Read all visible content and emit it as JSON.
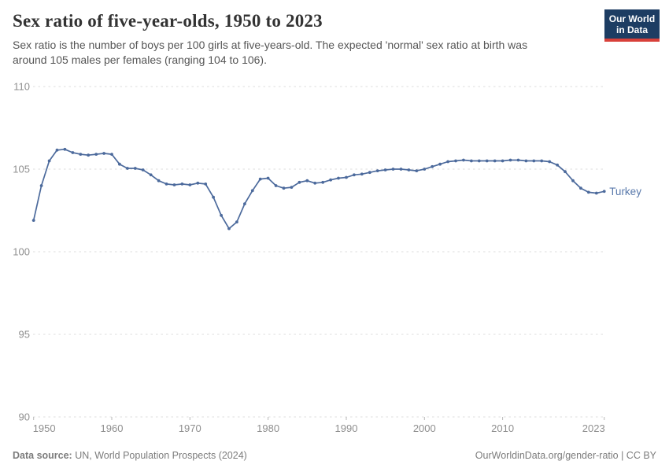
{
  "header": {
    "title": "Sex ratio of five-year-olds, 1950 to 2023",
    "subtitle_line1": "Sex ratio is the number of boys per 100 girls at five-years-old. The expected 'normal' sex ratio at birth was",
    "subtitle_line2": "around 105 males per females (ranging 104 to 106).",
    "logo_line1": "Our World",
    "logo_line2": "in Data"
  },
  "chart_data": {
    "type": "line",
    "title": "Sex ratio of five-year-olds, 1950 to 2023",
    "xlabel": "",
    "ylabel": "",
    "ylim": [
      90,
      110
    ],
    "yticks": [
      90,
      95,
      100,
      105,
      110
    ],
    "xticks": [
      1950,
      1960,
      1970,
      1980,
      1990,
      2000,
      2010,
      2023
    ],
    "x_range": [
      1950,
      2023
    ],
    "grid": "horizontal-dashed",
    "legend": "end-of-line-label",
    "x": [
      1950,
      1951,
      1952,
      1953,
      1954,
      1955,
      1956,
      1957,
      1958,
      1959,
      1960,
      1961,
      1962,
      1963,
      1964,
      1965,
      1966,
      1967,
      1968,
      1969,
      1970,
      1971,
      1972,
      1973,
      1974,
      1975,
      1976,
      1977,
      1978,
      1979,
      1980,
      1981,
      1982,
      1983,
      1984,
      1985,
      1986,
      1987,
      1988,
      1989,
      1990,
      1991,
      1992,
      1993,
      1994,
      1995,
      1996,
      1997,
      1998,
      1999,
      2000,
      2001,
      2002,
      2003,
      2004,
      2005,
      2006,
      2007,
      2008,
      2009,
      2010,
      2011,
      2012,
      2013,
      2014,
      2015,
      2016,
      2017,
      2018,
      2019,
      2020,
      2021,
      2022,
      2023
    ],
    "series": [
      {
        "name": "Turkey",
        "color": "#4C6A9C",
        "label_color": "#5878ab",
        "values": [
          101.9,
          104.0,
          105.5,
          106.15,
          106.2,
          106.0,
          105.9,
          105.85,
          105.9,
          105.95,
          105.9,
          105.3,
          105.05,
          105.05,
          104.95,
          104.65,
          104.3,
          104.1,
          104.05,
          104.1,
          104.05,
          104.15,
          104.1,
          103.3,
          102.2,
          101.4,
          101.8,
          102.9,
          103.7,
          104.4,
          104.45,
          104.0,
          103.85,
          103.9,
          104.2,
          104.3,
          104.15,
          104.2,
          104.35,
          104.45,
          104.5,
          104.65,
          104.7,
          104.8,
          104.9,
          104.95,
          105.0,
          105.0,
          104.95,
          104.9,
          105.0,
          105.15,
          105.3,
          105.45,
          105.5,
          105.55,
          105.5,
          105.5,
          105.5,
          105.5,
          105.5,
          105.55,
          105.55,
          105.5,
          105.5,
          105.5,
          105.45,
          105.25,
          104.85,
          104.3,
          103.85,
          103.6,
          103.55,
          103.65
        ]
      }
    ]
  },
  "footer": {
    "source_label": "Data source:",
    "source_text": " UN, World Population Prospects (2024)",
    "attribution": "OurWorldinData.org/gender-ratio | CC BY"
  },
  "colors": {
    "series_blue": "#4C6A9C",
    "logo_navy": "#1d3d63",
    "logo_red": "#d8403a",
    "grid_gray": "#dcdcdc",
    "axis_text": "#8f8f8f"
  }
}
